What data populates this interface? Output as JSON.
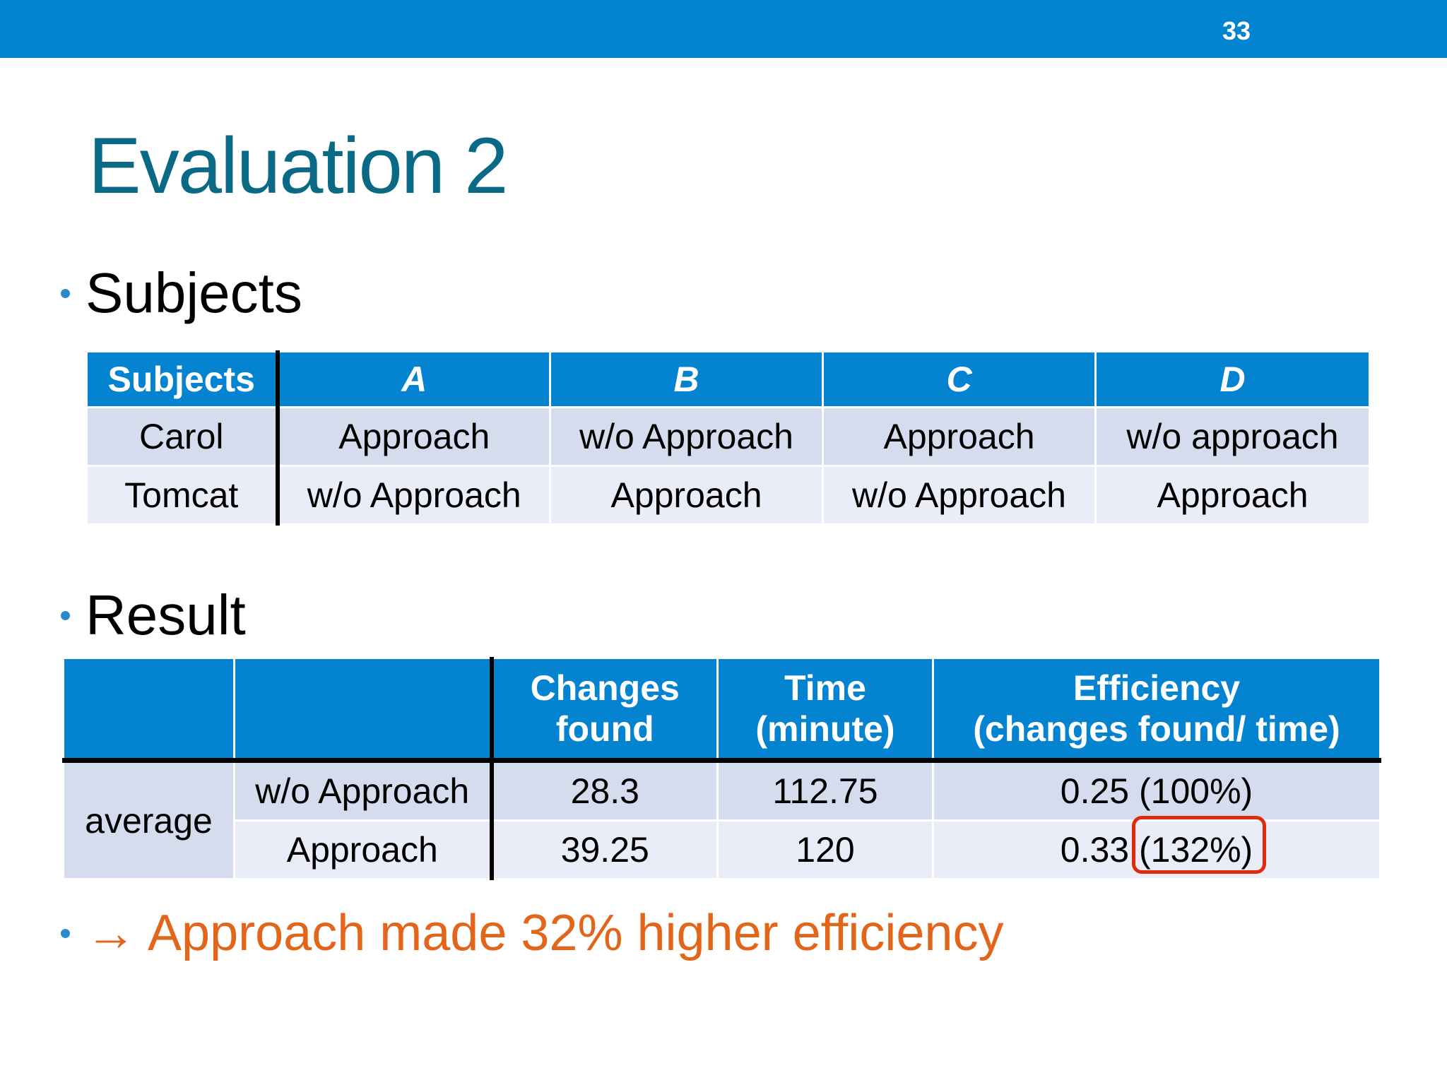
{
  "slide": {
    "number": "33",
    "title": "Evaluation 2"
  },
  "bullets": {
    "subjects": "Subjects",
    "result": "Result",
    "conclusion": "→ Approach made 32% higher efficiency"
  },
  "subjects_table": {
    "headers": [
      "Subjects",
      "A",
      "B",
      "C",
      "D"
    ],
    "rows": [
      [
        "Carol",
        "Approach",
        "w/o Approach",
        "Approach",
        "w/o approach"
      ],
      [
        "Tomcat",
        "w/o Approach",
        "Approach",
        "w/o Approach",
        "Approach"
      ]
    ]
  },
  "result_table": {
    "headers": [
      "",
      "",
      "Changes found",
      "Time (minute)",
      "Efficiency (changes found/ time)"
    ],
    "header_lines": {
      "changes": [
        "Changes",
        "found"
      ],
      "time": [
        "Time",
        "(minute)"
      ],
      "efficiency": [
        "Efficiency",
        "(changes found/ time)"
      ]
    },
    "group_label": "average",
    "rows": [
      [
        "w/o Approach",
        "28.3",
        "112.75",
        "0.25 (100%)"
      ],
      [
        "Approach",
        "39.25",
        "120",
        "0.33 (132%)"
      ]
    ],
    "highlight_color": "#e02a0c"
  },
  "colors": {
    "header_blue": "#0383d0",
    "title_teal": "#0a6a85",
    "row_dark": "#d5dcee",
    "row_light": "#eaedf7",
    "accent_orange": "#e2651a"
  }
}
